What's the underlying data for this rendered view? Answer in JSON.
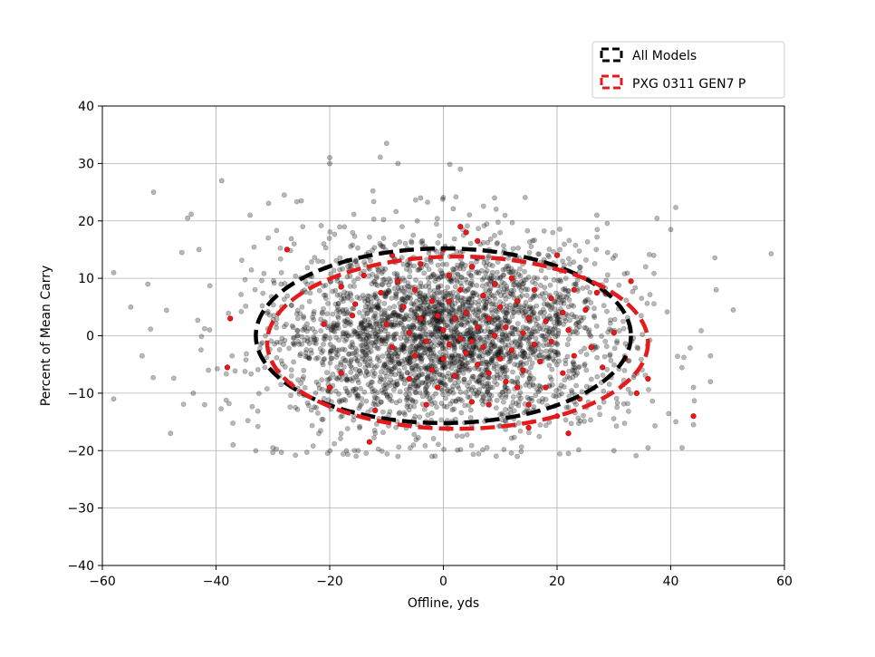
{
  "chart_data": {
    "type": "scatter",
    "xlabel": "Offline, yds",
    "ylabel": "Percent of Mean Carry",
    "xlim": [
      -60,
      60
    ],
    "ylim": [
      -40,
      40
    ],
    "xticks": [
      -60,
      -40,
      -20,
      0,
      20,
      40,
      60
    ],
    "yticks": [
      -40,
      -30,
      -20,
      -10,
      0,
      10,
      20,
      30,
      40
    ],
    "xtick_labels": [
      "−60",
      "−40",
      "−20",
      "0",
      "20",
      "40",
      "60"
    ],
    "ytick_labels": [
      "−40",
      "−30",
      "−20",
      "−10",
      "0",
      "10",
      "20",
      "30",
      "40"
    ],
    "grid": true,
    "legend_position": "top-right, above plot",
    "series": [
      {
        "name": "All Models",
        "color": "#000000",
        "alpha": 0.28,
        "distribution": {
          "n_points": 3000,
          "x_mean": 0,
          "x_std": 15,
          "y_mean": 0,
          "y_std": 8.5
        },
        "ellipse": {
          "cx": 0,
          "cy": 0,
          "rx": 33,
          "ry": 15.2
        },
        "ellipse_style": "dashed",
        "sample_points": [
          [
            -62,
            -5
          ],
          [
            -58,
            11
          ],
          [
            -58,
            -11
          ],
          [
            -51,
            25
          ],
          [
            -45,
            20.5
          ],
          [
            -46,
            14.5
          ],
          [
            -48,
            -17
          ],
          [
            -43,
            15
          ],
          [
            -39,
            27
          ],
          [
            -37,
            -19
          ],
          [
            -28,
            24.5
          ],
          [
            -20,
            31
          ],
          [
            -20,
            30
          ],
          [
            -10,
            33.5
          ],
          [
            -8,
            30
          ],
          [
            -4,
            24
          ],
          [
            3,
            29
          ],
          [
            9,
            24
          ],
          [
            27,
            21
          ],
          [
            36,
            -19.5
          ],
          [
            40,
            18.5
          ],
          [
            42,
            -19.5
          ],
          [
            44,
            -9
          ],
          [
            44,
            -15.5
          ],
          [
            47,
            -3.5
          ],
          [
            48,
            8
          ],
          [
            51,
            4.5
          ],
          [
            37,
            14
          ],
          [
            47,
            -8
          ],
          [
            -15,
            -20
          ],
          [
            -8,
            -21
          ],
          [
            -2,
            -21
          ],
          [
            13,
            -21
          ],
          [
            22,
            -20.5
          ],
          [
            30,
            -20
          ],
          [
            -30,
            -19.5
          ],
          [
            -42,
            -12
          ],
          [
            -44,
            -10
          ],
          [
            -53,
            -3.5
          ],
          [
            -55,
            5
          ],
          [
            -52,
            9
          ],
          [
            -34,
            21
          ],
          [
            -25,
            23.5
          ]
        ]
      },
      {
        "name": "PXG 0311 GEN7 P",
        "color": "#e41a1c",
        "alpha": 1.0,
        "ellipse": {
          "cx": 2.5,
          "cy": -1.2,
          "rx": 33.5,
          "ry": 15
        },
        "ellipse_style": "dashed",
        "points": [
          [
            -27.5,
            15
          ],
          [
            -38,
            -5.5
          ],
          [
            -37.5,
            3
          ],
          [
            -21,
            2
          ],
          [
            -18,
            -6.5
          ],
          [
            -18,
            8.5
          ],
          [
            -16,
            3.5
          ],
          [
            -13,
            -18.5
          ],
          [
            -11,
            7.5
          ],
          [
            -10,
            2
          ],
          [
            -9,
            -2
          ],
          [
            -8,
            9.5
          ],
          [
            -7,
            5
          ],
          [
            -6,
            0.5
          ],
          [
            -5,
            -3.5
          ],
          [
            -5,
            8
          ],
          [
            -4,
            12.5
          ],
          [
            -4,
            3
          ],
          [
            -3,
            -1
          ],
          [
            -2,
            6
          ],
          [
            -2,
            -6
          ],
          [
            -1,
            3.5
          ],
          [
            -1,
            -9
          ],
          [
            0,
            1
          ],
          [
            0,
            -4
          ],
          [
            1,
            10.5
          ],
          [
            1,
            -1.5
          ],
          [
            1,
            6
          ],
          [
            2,
            -7
          ],
          [
            2,
            3
          ],
          [
            3,
            19
          ],
          [
            3,
            -0.5
          ],
          [
            3,
            8
          ],
          [
            4,
            -3
          ],
          [
            4,
            4
          ],
          [
            5,
            -1
          ],
          [
            5,
            12
          ],
          [
            5,
            -11.5
          ],
          [
            6,
            1.5
          ],
          [
            6,
            -5
          ],
          [
            7,
            7
          ],
          [
            7,
            -2
          ],
          [
            8,
            3
          ],
          [
            8,
            -6.5
          ],
          [
            8,
            -12
          ],
          [
            9,
            0
          ],
          [
            9,
            9
          ],
          [
            10,
            -4
          ],
          [
            10,
            5
          ],
          [
            11,
            -8
          ],
          [
            11,
            1.5
          ],
          [
            12,
            10
          ],
          [
            12,
            -2.5
          ],
          [
            13,
            -9
          ],
          [
            13,
            6
          ],
          [
            14,
            0.5
          ],
          [
            14,
            -6
          ],
          [
            15,
            3
          ],
          [
            15,
            -12
          ],
          [
            16,
            -1.5
          ],
          [
            16,
            8
          ],
          [
            17,
            -4.5
          ],
          [
            18,
            2.5
          ],
          [
            18,
            -9
          ],
          [
            19,
            6.5
          ],
          [
            19,
            -1
          ],
          [
            20,
            -14
          ],
          [
            21,
            4
          ],
          [
            21,
            -6.5
          ],
          [
            22,
            -17
          ],
          [
            22,
            1
          ],
          [
            23,
            8
          ],
          [
            23,
            -3.5
          ],
          [
            24,
            -11
          ],
          [
            25,
            4.5
          ],
          [
            26,
            -2
          ],
          [
            27,
            7.5
          ],
          [
            28,
            -5.5
          ],
          [
            28.5,
            7.5
          ],
          [
            30,
            0.5
          ],
          [
            32,
            -4
          ],
          [
            33,
            9.5
          ],
          [
            34,
            -10
          ],
          [
            36,
            -7.5
          ],
          [
            44,
            -14
          ],
          [
            -15.5,
            5.5
          ],
          [
            -12,
            -13
          ],
          [
            -9,
            14
          ],
          [
            -6,
            -7.5
          ],
          [
            -3,
            -12
          ],
          [
            0,
            15
          ],
          [
            6,
            16.5
          ],
          [
            15,
            -16
          ],
          [
            20,
            14
          ],
          [
            -20,
            -9
          ],
          [
            -14,
            10.5
          ],
          [
            4,
            18
          ]
        ]
      }
    ]
  }
}
